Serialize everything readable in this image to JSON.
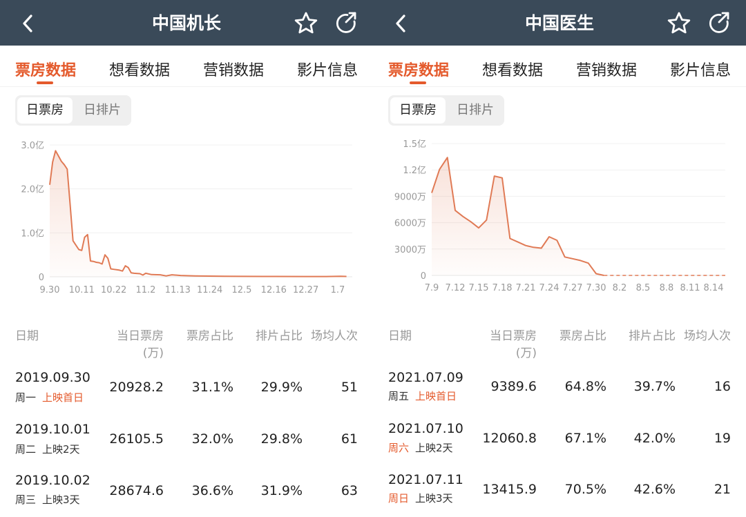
{
  "colors": {
    "header_bg": "#3a4a59",
    "accent": "#e45a2c",
    "line": "#e07a55"
  },
  "icons": [
    "chevron-left-icon",
    "star-icon",
    "share-icon"
  ],
  "panels": [
    {
      "title": "中国机长",
      "tabs": [
        "票房数据",
        "想看数据",
        "营销数据",
        "影片信息"
      ],
      "active_tab": 0,
      "segment": {
        "on": "日票房",
        "off": "日排片"
      },
      "table": {
        "headers": {
          "date": "日期",
          "box": "当日票房",
          "box_unit": "(万)",
          "box_share": "票房占比",
          "show_share": "排片占比",
          "avg": "场均人次"
        },
        "rows": [
          {
            "date": "2019.09.30",
            "weekday": "周一",
            "day": "上映首日",
            "weekday_orange": false,
            "day_orange": true,
            "box": "20928.2",
            "box_share": "31.1%",
            "show_share": "29.9%",
            "avg": "51"
          },
          {
            "date": "2019.10.01",
            "weekday": "周二",
            "day": "上映2天",
            "weekday_orange": false,
            "day_orange": false,
            "box": "26105.5",
            "box_share": "32.0%",
            "show_share": "29.8%",
            "avg": "61"
          },
          {
            "date": "2019.10.02",
            "weekday": "周三",
            "day": "上映3天",
            "weekday_orange": false,
            "day_orange": false,
            "box": "28674.6",
            "box_share": "36.6%",
            "show_share": "31.9%",
            "avg": "63"
          }
        ]
      }
    },
    {
      "title": "中国医生",
      "tabs": [
        "票房数据",
        "想看数据",
        "营销数据",
        "影片信息"
      ],
      "active_tab": 0,
      "segment": {
        "on": "日票房",
        "off": "日排片"
      },
      "table": {
        "headers": {
          "date": "日期",
          "box": "当日票房",
          "box_unit": "(万)",
          "box_share": "票房占比",
          "show_share": "排片占比",
          "avg": "场均人次"
        },
        "rows": [
          {
            "date": "2021.07.09",
            "weekday": "周五",
            "day": "上映首日",
            "weekday_orange": false,
            "day_orange": true,
            "box": "9389.6",
            "box_share": "64.8%",
            "show_share": "39.7%",
            "avg": "16"
          },
          {
            "date": "2021.07.10",
            "weekday": "周六",
            "day": "上映2天",
            "weekday_orange": true,
            "day_orange": false,
            "box": "12060.8",
            "box_share": "67.1%",
            "show_share": "42.0%",
            "avg": "19"
          },
          {
            "date": "2021.07.11",
            "weekday": "周日",
            "day": "上映3天",
            "weekday_orange": true,
            "day_orange": false,
            "box": "13415.9",
            "box_share": "70.5%",
            "show_share": "42.6%",
            "avg": "21"
          }
        ]
      }
    }
  ],
  "chart_data": [
    {
      "type": "area",
      "unit": "万",
      "yticks": [
        {
          "v": 0,
          "label": "0"
        },
        {
          "v": 10000,
          "label": "1.0亿"
        },
        {
          "v": 20000,
          "label": "2.0亿"
        },
        {
          "v": 30000,
          "label": "3.0亿"
        }
      ],
      "ylim": [
        0,
        30000
      ],
      "xticks": [
        "9.30",
        "10.11",
        "10.22",
        "11.2",
        "11.13",
        "11.24",
        "12.5",
        "12.16",
        "12.27",
        "1.7"
      ],
      "xtick_days": [
        0,
        11,
        22,
        33,
        44,
        55,
        66,
        77,
        88,
        99
      ],
      "xlim": [
        0,
        104
      ],
      "grid": true,
      "solid": [
        [
          0,
          20928
        ],
        [
          1,
          26106
        ],
        [
          2,
          28675
        ],
        [
          3,
          27500
        ],
        [
          4,
          26300
        ],
        [
          5,
          25500
        ],
        [
          6,
          24500
        ],
        [
          7,
          16500
        ],
        [
          8,
          8200
        ],
        [
          9,
          7200
        ],
        [
          10,
          6200
        ],
        [
          11,
          6000
        ],
        [
          12,
          9000
        ],
        [
          13,
          9600
        ],
        [
          14,
          3600
        ],
        [
          15,
          3500
        ],
        [
          16,
          3300
        ],
        [
          17,
          3200
        ],
        [
          18,
          2900
        ],
        [
          19,
          5000
        ],
        [
          20,
          4200
        ],
        [
          21,
          1800
        ],
        [
          22,
          1700
        ],
        [
          23,
          1600
        ],
        [
          24,
          1500
        ],
        [
          25,
          1300
        ],
        [
          26,
          2500
        ],
        [
          27,
          2100
        ],
        [
          28,
          900
        ],
        [
          29,
          800
        ],
        [
          31,
          700
        ],
        [
          32,
          400
        ],
        [
          33,
          800
        ],
        [
          35,
          500
        ],
        [
          38,
          450
        ],
        [
          40,
          200
        ],
        [
          42,
          450
        ],
        [
          45,
          300
        ],
        [
          50,
          200
        ],
        [
          55,
          150
        ],
        [
          60,
          120
        ],
        [
          66,
          100
        ],
        [
          77,
          80
        ],
        [
          88,
          70
        ],
        [
          95,
          60
        ],
        [
          100,
          120
        ],
        [
          102,
          80
        ]
      ],
      "dashed": []
    },
    {
      "type": "area",
      "unit": "万",
      "yticks": [
        {
          "v": 0,
          "label": "0"
        },
        {
          "v": 3000,
          "label": "3000万"
        },
        {
          "v": 6000,
          "label": "6000万"
        },
        {
          "v": 9000,
          "label": "9000万"
        },
        {
          "v": 12000,
          "label": "1.2亿"
        },
        {
          "v": 15000,
          "label": "1.5亿"
        }
      ],
      "ylim": [
        0,
        15000
      ],
      "xticks": [
        "7.9",
        "7.12",
        "7.15",
        "7.18",
        "7.21",
        "7.24",
        "7.27",
        "7.30",
        "8.2",
        "8.5",
        "8.8",
        "8.11",
        "8.14"
      ],
      "xtick_days": [
        0,
        3,
        6,
        9,
        12,
        15,
        18,
        21,
        24,
        27,
        30,
        33,
        36
      ],
      "xlim": [
        0,
        37.5
      ],
      "grid": true,
      "solid": [
        [
          0,
          9390
        ],
        [
          1,
          12061
        ],
        [
          2,
          13416
        ],
        [
          3,
          7400
        ],
        [
          4,
          6700
        ],
        [
          5,
          6100
        ],
        [
          6,
          5400
        ],
        [
          7,
          6300
        ],
        [
          8,
          11300
        ],
        [
          9,
          11100
        ],
        [
          10,
          4200
        ],
        [
          11,
          3800
        ],
        [
          12,
          3400
        ],
        [
          13,
          3200
        ],
        [
          14,
          3100
        ],
        [
          15,
          4400
        ],
        [
          16,
          4000
        ],
        [
          17,
          2100
        ],
        [
          18,
          1900
        ],
        [
          19,
          1700
        ],
        [
          20,
          1400
        ],
        [
          21,
          200
        ],
        [
          22,
          0
        ]
      ],
      "dashed": [
        [
          22,
          0
        ],
        [
          37.5,
          0
        ]
      ]
    }
  ]
}
